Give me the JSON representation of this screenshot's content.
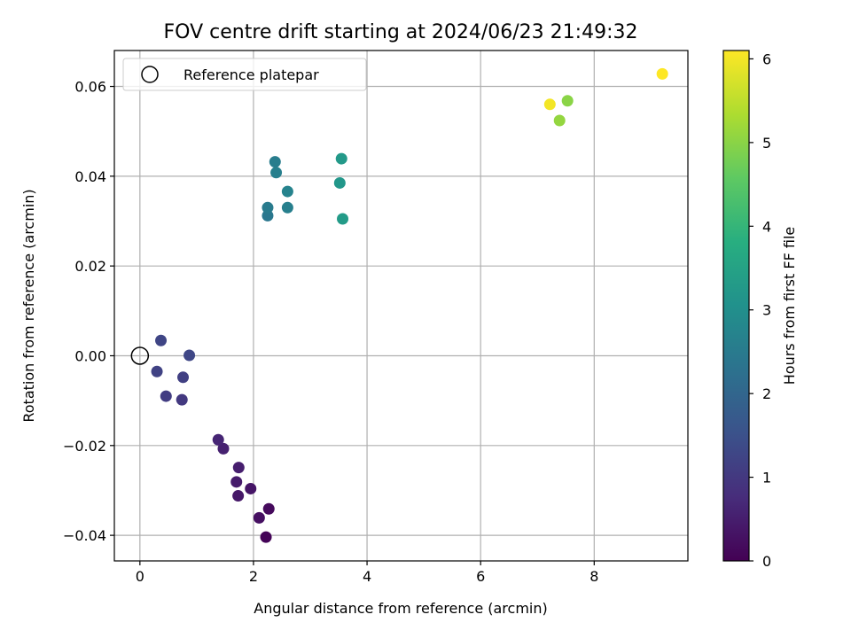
{
  "chart_data": {
    "type": "scatter",
    "title": "FOV centre drift starting at 2024/06/23 21:49:32",
    "xlabel": "Angular distance from reference (arcmin)",
    "ylabel": "Rotation from reference (arcmin)",
    "xlim": [
      -0.45,
      9.65
    ],
    "ylim": [
      -0.0457,
      0.068
    ],
    "xticks": [
      0,
      2,
      4,
      6,
      8
    ],
    "xtick_labels": [
      "0",
      "2",
      "4",
      "6",
      "8"
    ],
    "yticks": [
      -0.04,
      -0.02,
      0.0,
      0.02,
      0.04,
      0.06
    ],
    "ytick_labels": [
      "−0.04",
      "−0.02",
      "0.00",
      "0.02",
      "0.04",
      "0.06"
    ],
    "grid": true,
    "legend": {
      "placement": "upper-left",
      "entries": [
        {
          "label": "Reference platepar",
          "marker": "open-circle"
        }
      ]
    },
    "reference_point": {
      "x": 0,
      "y": 0
    },
    "colorbar": {
      "label": "Hours from first FF file",
      "colormap": "viridis",
      "range": [
        0,
        6.1
      ],
      "ticks": [
        0,
        1,
        2,
        3,
        4,
        5,
        6
      ],
      "tick_labels": [
        "0",
        "1",
        "2",
        "3",
        "4",
        "5",
        "6"
      ]
    },
    "points": [
      {
        "x": 2.22,
        "y": -0.0404,
        "c": 0.05
      },
      {
        "x": 2.27,
        "y": -0.0341,
        "c": 0.15
      },
      {
        "x": 2.1,
        "y": -0.0361,
        "c": 0.25
      },
      {
        "x": 1.95,
        "y": -0.0296,
        "c": 0.35
      },
      {
        "x": 1.73,
        "y": -0.0312,
        "c": 0.4
      },
      {
        "x": 1.7,
        "y": -0.0281,
        "c": 0.45
      },
      {
        "x": 1.74,
        "y": -0.0249,
        "c": 0.5
      },
      {
        "x": 1.47,
        "y": -0.0207,
        "c": 0.55
      },
      {
        "x": 1.38,
        "y": -0.0187,
        "c": 0.62
      },
      {
        "x": 0.74,
        "y": -0.0098,
        "c": 1.0
      },
      {
        "x": 0.46,
        "y": -0.009,
        "c": 1.1
      },
      {
        "x": 0.76,
        "y": -0.0048,
        "c": 1.15
      },
      {
        "x": 0.3,
        "y": -0.0035,
        "c": 1.2
      },
      {
        "x": 0.87,
        "y": 0.0001,
        "c": 1.3
      },
      {
        "x": 0.37,
        "y": 0.0034,
        "c": 1.25
      },
      {
        "x": 2.25,
        "y": 0.0312,
        "c": 2.4
      },
      {
        "x": 2.25,
        "y": 0.033,
        "c": 2.5
      },
      {
        "x": 2.6,
        "y": 0.033,
        "c": 2.6
      },
      {
        "x": 2.6,
        "y": 0.0366,
        "c": 2.7
      },
      {
        "x": 2.4,
        "y": 0.0408,
        "c": 2.6
      },
      {
        "x": 2.38,
        "y": 0.0432,
        "c": 2.55
      },
      {
        "x": 3.52,
        "y": 0.0385,
        "c": 3.2
      },
      {
        "x": 3.57,
        "y": 0.0305,
        "c": 3.3
      },
      {
        "x": 3.55,
        "y": 0.0439,
        "c": 3.25
      },
      {
        "x": 7.22,
        "y": 0.056,
        "c": 6.0
      },
      {
        "x": 7.39,
        "y": 0.0524,
        "c": 5.1
      },
      {
        "x": 7.53,
        "y": 0.0568,
        "c": 5.0
      },
      {
        "x": 9.2,
        "y": 0.0628,
        "c": 6.1
      }
    ]
  }
}
